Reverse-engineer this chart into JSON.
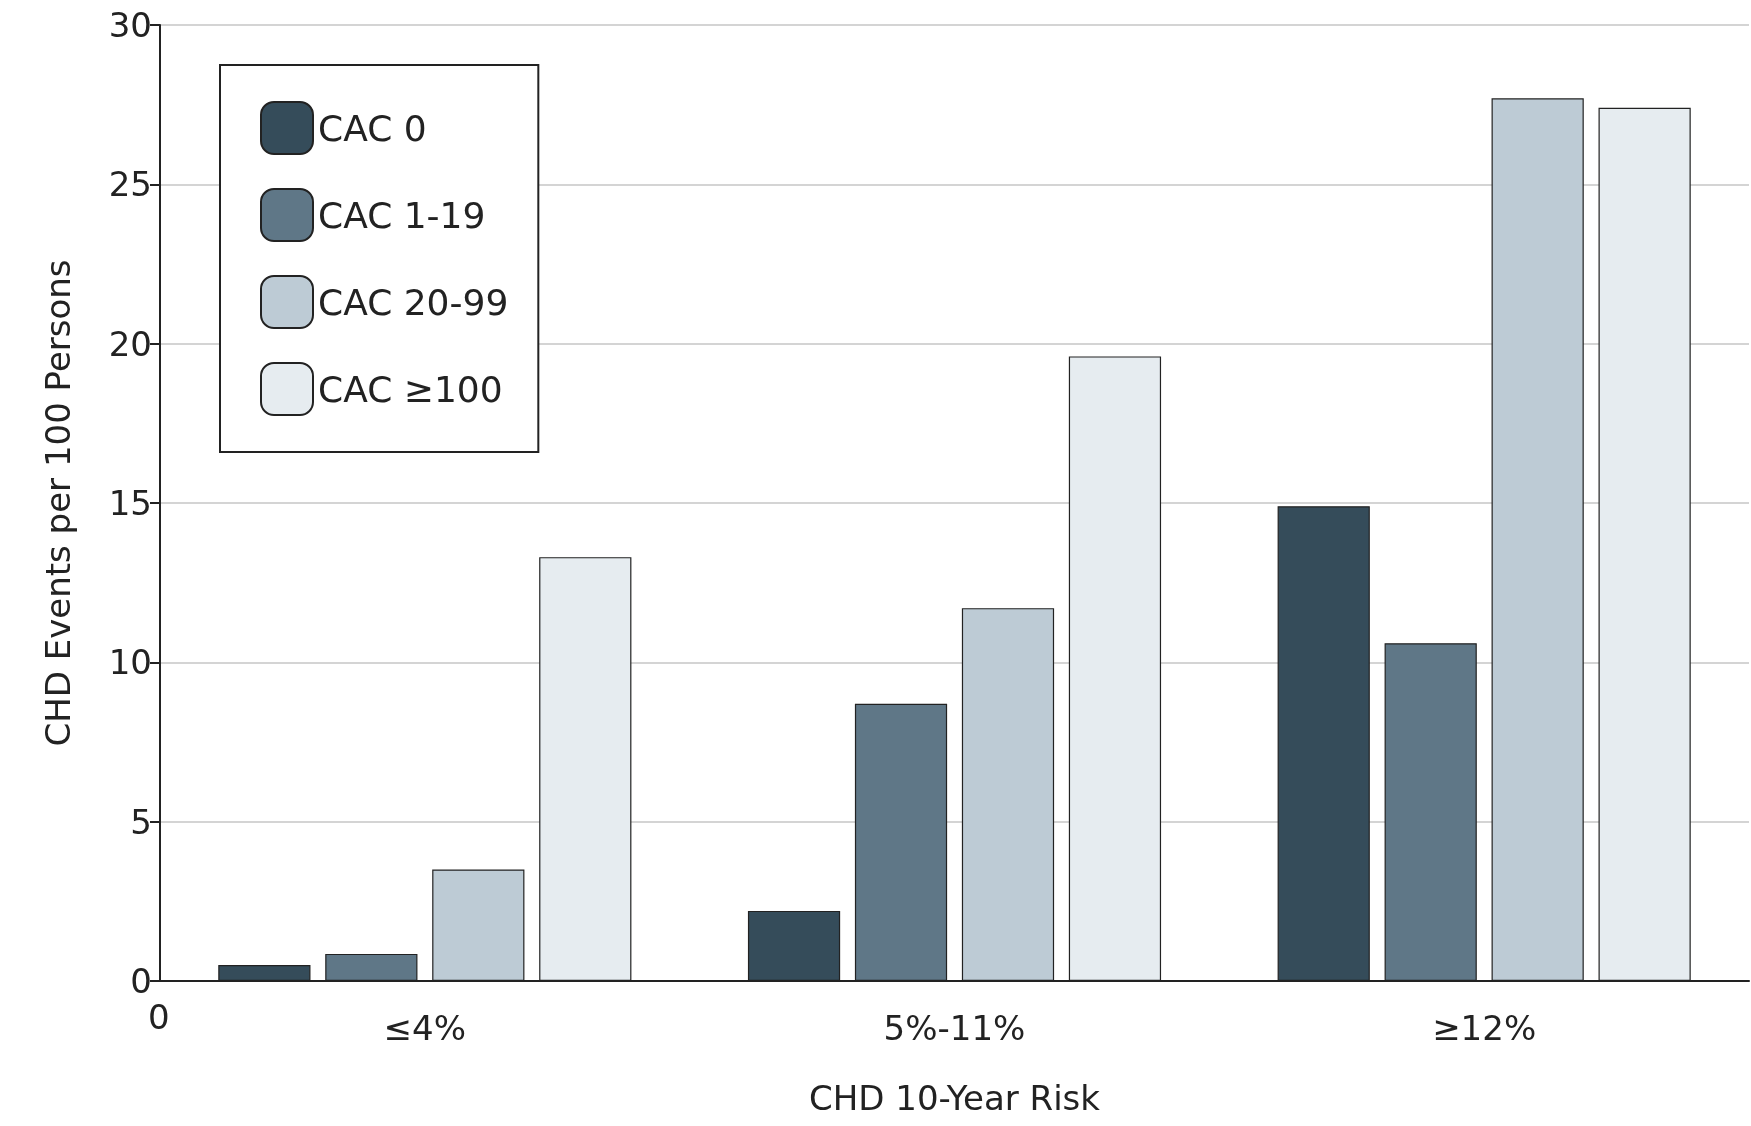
{
  "chart_data": {
    "type": "bar",
    "xlabel": "CHD 10-Year Risk",
    "ylabel": "CHD Events per 100 Persons",
    "categories": [
      "≤4%",
      "5%-11%",
      "≥12%"
    ],
    "series": [
      {
        "name": "CAC 0",
        "color": "#354c5a",
        "values": [
          0.5,
          2.2,
          14.9
        ]
      },
      {
        "name": "CAC 1-19",
        "color": "#5f7787",
        "values": [
          0.85,
          8.7,
          10.6
        ]
      },
      {
        "name": "CAC 20-99",
        "color": "#bdcbd5",
        "values": [
          3.5,
          11.7,
          27.7
        ]
      },
      {
        "name": "CAC ≥100",
        "color": "#e6ecf0",
        "values": [
          13.3,
          19.6,
          27.4
        ]
      }
    ],
    "ylim": [
      0,
      30
    ],
    "yticks": [
      0,
      5,
      10,
      15,
      20,
      25,
      30
    ],
    "grid": "y",
    "legend": "top left",
    "annotations": [
      "0"
    ]
  }
}
